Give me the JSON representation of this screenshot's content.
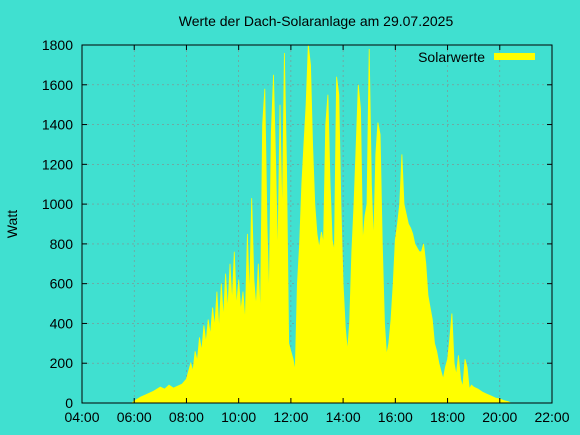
{
  "chart_data": {
    "type": "area",
    "title": "Werte der Dach-Solaranlage am 29.07.2025",
    "xlabel": "",
    "ylabel": "Watt",
    "xlim": [
      "04:00",
      "22:00"
    ],
    "ylim": [
      0,
      1800
    ],
    "x_ticks": [
      "04:00",
      "06:00",
      "08:00",
      "10:00",
      "12:00",
      "14:00",
      "16:00",
      "18:00",
      "20:00",
      "22:00"
    ],
    "y_ticks": [
      0,
      200,
      400,
      600,
      800,
      1000,
      1200,
      1400,
      1600,
      1800
    ],
    "grid": true,
    "legend_position": "top-right",
    "series": [
      {
        "name": "Solarwerte",
        "color": "#FFFF00",
        "points": [
          [
            "05:55",
            0
          ],
          [
            "06:00",
            10
          ],
          [
            "06:15",
            30
          ],
          [
            "06:30",
            45
          ],
          [
            "06:45",
            60
          ],
          [
            "07:00",
            80
          ],
          [
            "07:10",
            70
          ],
          [
            "07:20",
            90
          ],
          [
            "07:30",
            75
          ],
          [
            "07:40",
            85
          ],
          [
            "07:50",
            95
          ],
          [
            "08:00",
            120
          ],
          [
            "08:10",
            200
          ],
          [
            "08:15",
            160
          ],
          [
            "08:20",
            260
          ],
          [
            "08:25",
            210
          ],
          [
            "08:30",
            330
          ],
          [
            "08:35",
            260
          ],
          [
            "08:40",
            390
          ],
          [
            "08:45",
            300
          ],
          [
            "08:50",
            420
          ],
          [
            "08:55",
            340
          ],
          [
            "09:00",
            480
          ],
          [
            "09:05",
            380
          ],
          [
            "09:10",
            560
          ],
          [
            "09:15",
            360
          ],
          [
            "09:20",
            600
          ],
          [
            "09:25",
            420
          ],
          [
            "09:30",
            650
          ],
          [
            "09:35",
            460
          ],
          [
            "09:40",
            700
          ],
          [
            "09:45",
            500
          ],
          [
            "09:50",
            760
          ],
          [
            "09:55",
            480
          ],
          [
            "10:00",
            620
          ],
          [
            "10:05",
            460
          ],
          [
            "10:10",
            560
          ],
          [
            "10:15",
            400
          ],
          [
            "10:20",
            850
          ],
          [
            "10:25",
            520
          ],
          [
            "10:30",
            1030
          ],
          [
            "10:35",
            620
          ],
          [
            "10:40",
            480
          ],
          [
            "10:45",
            700
          ],
          [
            "10:50",
            420
          ],
          [
            "10:55",
            1400
          ],
          [
            "11:00",
            1580
          ],
          [
            "11:05",
            900
          ],
          [
            "11:10",
            500
          ],
          [
            "11:15",
            1360
          ],
          [
            "11:20",
            1650
          ],
          [
            "11:25",
            1200
          ],
          [
            "11:30",
            700
          ],
          [
            "11:35",
            1500
          ],
          [
            "11:40",
            900
          ],
          [
            "11:45",
            1760
          ],
          [
            "11:50",
            1200
          ],
          [
            "11:55",
            300
          ],
          [
            "12:00",
            260
          ],
          [
            "12:05",
            220
          ],
          [
            "12:10",
            160
          ],
          [
            "12:15",
            600
          ],
          [
            "12:20",
            800
          ],
          [
            "12:25",
            1100
          ],
          [
            "12:30",
            1300
          ],
          [
            "12:35",
            1500
          ],
          [
            "12:40",
            1800
          ],
          [
            "12:45",
            1700
          ],
          [
            "12:50",
            1300
          ],
          [
            "12:55",
            1000
          ],
          [
            "13:00",
            850
          ],
          [
            "13:05",
            780
          ],
          [
            "13:10",
            860
          ],
          [
            "13:15",
            800
          ],
          [
            "13:20",
            1400
          ],
          [
            "13:25",
            1550
          ],
          [
            "13:30",
            1100
          ],
          [
            "13:35",
            820
          ],
          [
            "13:40",
            760
          ],
          [
            "13:45",
            1640
          ],
          [
            "13:50",
            1550
          ],
          [
            "13:55",
            1000
          ],
          [
            "14:00",
            600
          ],
          [
            "14:05",
            380
          ],
          [
            "14:10",
            260
          ],
          [
            "14:15",
            400
          ],
          [
            "14:20",
            760
          ],
          [
            "14:25",
            1000
          ],
          [
            "14:30",
            1300
          ],
          [
            "14:35",
            1600
          ],
          [
            "14:40",
            1480
          ],
          [
            "14:45",
            800
          ],
          [
            "14:50",
            940
          ],
          [
            "14:55",
            1000
          ],
          [
            "15:00",
            1780
          ],
          [
            "15:05",
            1100
          ],
          [
            "15:10",
            800
          ],
          [
            "15:15",
            1250
          ],
          [
            "15:20",
            1410
          ],
          [
            "15:25",
            1350
          ],
          [
            "15:30",
            800
          ],
          [
            "15:35",
            400
          ],
          [
            "15:40",
            240
          ],
          [
            "15:45",
            300
          ],
          [
            "15:50",
            420
          ],
          [
            "15:55",
            600
          ],
          [
            "16:00",
            820
          ],
          [
            "16:05",
            900
          ],
          [
            "16:10",
            1000
          ],
          [
            "16:15",
            1250
          ],
          [
            "16:20",
            1000
          ],
          [
            "16:25",
            950
          ],
          [
            "16:30",
            900
          ],
          [
            "16:35",
            880
          ],
          [
            "16:40",
            850
          ],
          [
            "16:45",
            800
          ],
          [
            "16:50",
            780
          ],
          [
            "16:55",
            760
          ],
          [
            "17:00",
            760
          ],
          [
            "17:05",
            800
          ],
          [
            "17:10",
            700
          ],
          [
            "17:15",
            540
          ],
          [
            "17:20",
            480
          ],
          [
            "17:25",
            420
          ],
          [
            "17:30",
            300
          ],
          [
            "17:35",
            260
          ],
          [
            "17:40",
            200
          ],
          [
            "17:45",
            160
          ],
          [
            "17:50",
            120
          ],
          [
            "17:55",
            180
          ],
          [
            "18:00",
            220
          ],
          [
            "18:05",
            320
          ],
          [
            "18:10",
            450
          ],
          [
            "18:15",
            200
          ],
          [
            "18:20",
            140
          ],
          [
            "18:25",
            240
          ],
          [
            "18:30",
            120
          ],
          [
            "18:35",
            80
          ],
          [
            "18:40",
            220
          ],
          [
            "18:45",
            180
          ],
          [
            "18:50",
            70
          ],
          [
            "18:55",
            90
          ],
          [
            "19:00",
            80
          ],
          [
            "19:10",
            70
          ],
          [
            "19:20",
            55
          ],
          [
            "19:30",
            45
          ],
          [
            "19:40",
            35
          ],
          [
            "19:50",
            25
          ],
          [
            "20:00",
            20
          ],
          [
            "20:10",
            12
          ],
          [
            "20:20",
            6
          ],
          [
            "20:25",
            0
          ]
        ]
      }
    ]
  }
}
